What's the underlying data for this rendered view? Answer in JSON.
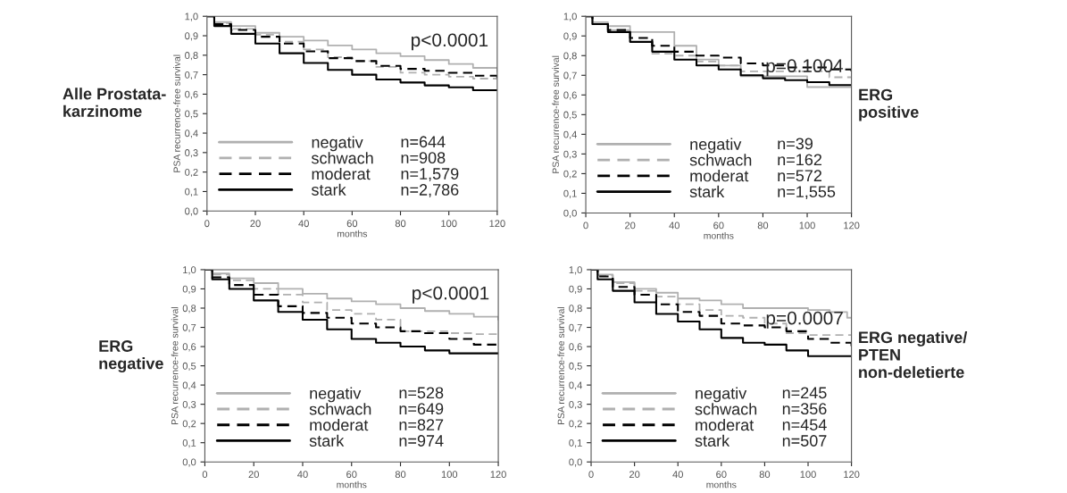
{
  "chart_data": [
    {
      "type": "step",
      "title": "Alle Prostata-\nkarzinome",
      "xlabel": "months",
      "ylabel": "PSA recurrence-free survival",
      "annotations": [
        "p<0.0001",
        "n=644",
        "n=908",
        "n=1,579",
        "n=2,786"
      ],
      "x": [
        0,
        3,
        10,
        20,
        30,
        40,
        50,
        60,
        70,
        80,
        90,
        100,
        110,
        120
      ],
      "xlim": [
        0,
        120
      ],
      "xticks": [
        0,
        20,
        40,
        60,
        80,
        100,
        120
      ],
      "ylim": [
        0,
        1
      ],
      "yticks": [
        {
          "value": 0,
          "label": "0,0"
        },
        {
          "value": 0.1,
          "label": "0,1"
        },
        {
          "value": 0.2,
          "label": "0,2"
        },
        {
          "value": 0.3,
          "label": "0,3"
        },
        {
          "value": 0.4,
          "label": "0,4"
        },
        {
          "value": 0.5,
          "label": "0,5"
        },
        {
          "value": 0.6,
          "label": "0,6"
        },
        {
          "value": 0.7,
          "label": "0,7"
        },
        {
          "value": 0.8,
          "label": "0,8"
        },
        {
          "value": 0.9,
          "label": "0,9"
        },
        {
          "value": 1,
          "label": "1,0"
        }
      ],
      "grid": false,
      "legend": "bottom left",
      "series": [
        {
          "name": "negativ",
          "color": "#b0b0b0",
          "line_style": "solid",
          "values": [
            1,
            0.97,
            0.95,
            0.915,
            0.895,
            0.875,
            0.85,
            0.83,
            0.81,
            0.795,
            0.775,
            0.755,
            0.735,
            0.715
          ]
        },
        {
          "name": "schwach",
          "color": "#b0b0b0",
          "line_style": "dashed",
          "values": [
            1,
            0.965,
            0.935,
            0.905,
            0.87,
            0.83,
            0.79,
            0.77,
            0.74,
            0.71,
            0.7,
            0.69,
            0.68,
            0.675
          ]
        },
        {
          "name": "moderat",
          "color": "#000000",
          "line_style": "dashed",
          "values": [
            1,
            0.96,
            0.93,
            0.895,
            0.86,
            0.82,
            0.785,
            0.77,
            0.745,
            0.73,
            0.72,
            0.71,
            0.695,
            0.685
          ]
        },
        {
          "name": "stark",
          "color": "#000000",
          "line_style": "solid",
          "values": [
            1,
            0.95,
            0.91,
            0.86,
            0.81,
            0.76,
            0.725,
            0.7,
            0.675,
            0.66,
            0.645,
            0.635,
            0.62,
            0.62
          ]
        }
      ]
    },
    {
      "type": "step",
      "title": "ERG\npositive",
      "xlabel": "months",
      "ylabel": "PSA recurrence-free survival",
      "annotations": [
        "p=0.1004",
        "n=39",
        "n=162",
        "n=572",
        "n=1,555"
      ],
      "x": [
        0,
        3,
        10,
        20,
        30,
        40,
        50,
        60,
        70,
        80,
        90,
        100,
        110,
        120
      ],
      "xlim": [
        0,
        120
      ],
      "xticks": [
        0,
        20,
        40,
        60,
        80,
        100,
        120
      ],
      "ylim": [
        0,
        1
      ],
      "yticks": [
        {
          "value": 0,
          "label": "0,0"
        },
        {
          "value": 0.1,
          "label": "0,1"
        },
        {
          "value": 0.2,
          "label": "0,2"
        },
        {
          "value": 0.3,
          "label": "0,3"
        },
        {
          "value": 0.4,
          "label": "0,4"
        },
        {
          "value": 0.5,
          "label": "0,5"
        },
        {
          "value": 0.6,
          "label": "0,6"
        },
        {
          "value": 0.7,
          "label": "0,7"
        },
        {
          "value": 0.8,
          "label": "0,8"
        },
        {
          "value": 0.9,
          "label": "0,9"
        },
        {
          "value": 1,
          "label": "1,0"
        }
      ],
      "grid": false,
      "legend": "bottom left",
      "series": [
        {
          "name": "negativ",
          "color": "#b0b0b0",
          "line_style": "solid",
          "values": [
            1,
            0.97,
            0.95,
            0.92,
            0.92,
            0.85,
            0.78,
            0.75,
            0.695,
            0.695,
            0.695,
            0.64,
            0.64,
            0.64
          ]
        },
        {
          "name": "schwach",
          "color": "#b0b0b0",
          "line_style": "dashed",
          "values": [
            1,
            0.96,
            0.93,
            0.87,
            0.81,
            0.8,
            0.77,
            0.75,
            0.72,
            0.72,
            0.72,
            0.72,
            0.69,
            0.69
          ]
        },
        {
          "name": "moderat",
          "color": "#000000",
          "line_style": "dashed",
          "values": [
            1,
            0.96,
            0.93,
            0.89,
            0.85,
            0.82,
            0.8,
            0.79,
            0.76,
            0.75,
            0.74,
            0.74,
            0.73,
            0.72
          ]
        },
        {
          "name": "stark",
          "color": "#000000",
          "line_style": "solid",
          "values": [
            1,
            0.96,
            0.92,
            0.87,
            0.82,
            0.78,
            0.75,
            0.73,
            0.7,
            0.685,
            0.675,
            0.665,
            0.65,
            0.65
          ]
        }
      ]
    },
    {
      "type": "step",
      "title": "ERG\nnegative",
      "xlabel": "months",
      "ylabel": "PSA recurrence-free survival",
      "annotations": [
        "p<0.0001",
        "n=528",
        "n=649",
        "n=827",
        "n=974"
      ],
      "x": [
        0,
        3,
        10,
        20,
        30,
        40,
        50,
        60,
        70,
        80,
        90,
        100,
        110,
        120
      ],
      "xlim": [
        0,
        120
      ],
      "xticks": [
        0,
        20,
        40,
        60,
        80,
        100,
        120
      ],
      "ylim": [
        0,
        1
      ],
      "yticks": [
        {
          "value": 0,
          "label": "0,0"
        },
        {
          "value": 0.1,
          "label": "0,1"
        },
        {
          "value": 0.2,
          "label": "0,2"
        },
        {
          "value": 0.3,
          "label": "0,3"
        },
        {
          "value": 0.4,
          "label": "0,4"
        },
        {
          "value": 0.5,
          "label": "0,5"
        },
        {
          "value": 0.6,
          "label": "0,6"
        },
        {
          "value": 0.7,
          "label": "0,7"
        },
        {
          "value": 0.8,
          "label": "0,8"
        },
        {
          "value": 0.9,
          "label": "0,9"
        },
        {
          "value": 1,
          "label": "1,0"
        }
      ],
      "grid": false,
      "legend": "bottom left",
      "series": [
        {
          "name": "negativ",
          "color": "#b0b0b0",
          "line_style": "solid",
          "values": [
            1,
            0.98,
            0.955,
            0.93,
            0.9,
            0.875,
            0.85,
            0.835,
            0.82,
            0.8,
            0.785,
            0.77,
            0.755,
            0.74
          ]
        },
        {
          "name": "schwach",
          "color": "#b0b0b0",
          "line_style": "dashed",
          "values": [
            1,
            0.975,
            0.945,
            0.9,
            0.87,
            0.83,
            0.79,
            0.77,
            0.74,
            0.68,
            0.68,
            0.67,
            0.665,
            0.665
          ]
        },
        {
          "name": "moderat",
          "color": "#000000",
          "line_style": "dashed",
          "values": [
            1,
            0.96,
            0.92,
            0.87,
            0.81,
            0.775,
            0.75,
            0.72,
            0.7,
            0.68,
            0.67,
            0.64,
            0.61,
            0.605
          ]
        },
        {
          "name": "stark",
          "color": "#000000",
          "line_style": "solid",
          "values": [
            1,
            0.95,
            0.9,
            0.84,
            0.78,
            0.74,
            0.69,
            0.64,
            0.62,
            0.6,
            0.58,
            0.565,
            0.565,
            0.565
          ]
        }
      ]
    },
    {
      "type": "step",
      "title": "ERG negative/\nPTEN\nnon-deletierte",
      "xlabel": "months",
      "ylabel": "PSA recurrence-free survival",
      "annotations": [
        "p=0.0007",
        "n=245",
        "n=356",
        "n=454",
        "n=507"
      ],
      "x": [
        0,
        3,
        10,
        20,
        30,
        40,
        50,
        60,
        70,
        80,
        90,
        100,
        110,
        120
      ],
      "xlim": [
        0,
        120
      ],
      "xticks": [
        0,
        20,
        40,
        60,
        80,
        100,
        120
      ],
      "ylim": [
        0,
        1
      ],
      "yticks": [
        {
          "value": 0,
          "label": "0,0"
        },
        {
          "value": 0.1,
          "label": "0,1"
        },
        {
          "value": 0.2,
          "label": "0,2"
        },
        {
          "value": 0.3,
          "label": "0,3"
        },
        {
          "value": 0.4,
          "label": "0,4"
        },
        {
          "value": 0.5,
          "label": "0,5"
        },
        {
          "value": 0.6,
          "label": "0,6"
        },
        {
          "value": 0.7,
          "label": "0,7"
        },
        {
          "value": 0.8,
          "label": "0,8"
        },
        {
          "value": 0.9,
          "label": "0,9"
        },
        {
          "value": 1,
          "label": "1,0"
        }
      ],
      "grid": false,
      "legend": "bottom left",
      "series": [
        {
          "name": "negativ",
          "color": "#b0b0b0",
          "line_style": "solid",
          "x": [
            0,
            3,
            10,
            20,
            30,
            40,
            50,
            60,
            70,
            80,
            90,
            100,
            110,
            118,
            120
          ],
          "values": [
            1,
            0.975,
            0.935,
            0.9,
            0.88,
            0.85,
            0.84,
            0.82,
            0.8,
            0.8,
            0.8,
            0.79,
            0.78,
            0.75,
            0.75
          ]
        },
        {
          "name": "schwach",
          "color": "#b0b0b0",
          "line_style": "dashed",
          "values": [
            1,
            0.97,
            0.93,
            0.89,
            0.86,
            0.82,
            0.79,
            0.76,
            0.75,
            0.72,
            0.67,
            0.66,
            0.66,
            0.66
          ]
        },
        {
          "name": "moderat",
          "color": "#000000",
          "line_style": "dashed",
          "values": [
            1,
            0.965,
            0.91,
            0.87,
            0.82,
            0.78,
            0.76,
            0.72,
            0.71,
            0.7,
            0.68,
            0.64,
            0.62,
            0.59
          ]
        },
        {
          "name": "stark",
          "color": "#000000",
          "line_style": "solid",
          "values": [
            1,
            0.95,
            0.89,
            0.83,
            0.77,
            0.73,
            0.69,
            0.645,
            0.62,
            0.61,
            0.58,
            0.55,
            0.55,
            0.55
          ]
        }
      ]
    }
  ]
}
